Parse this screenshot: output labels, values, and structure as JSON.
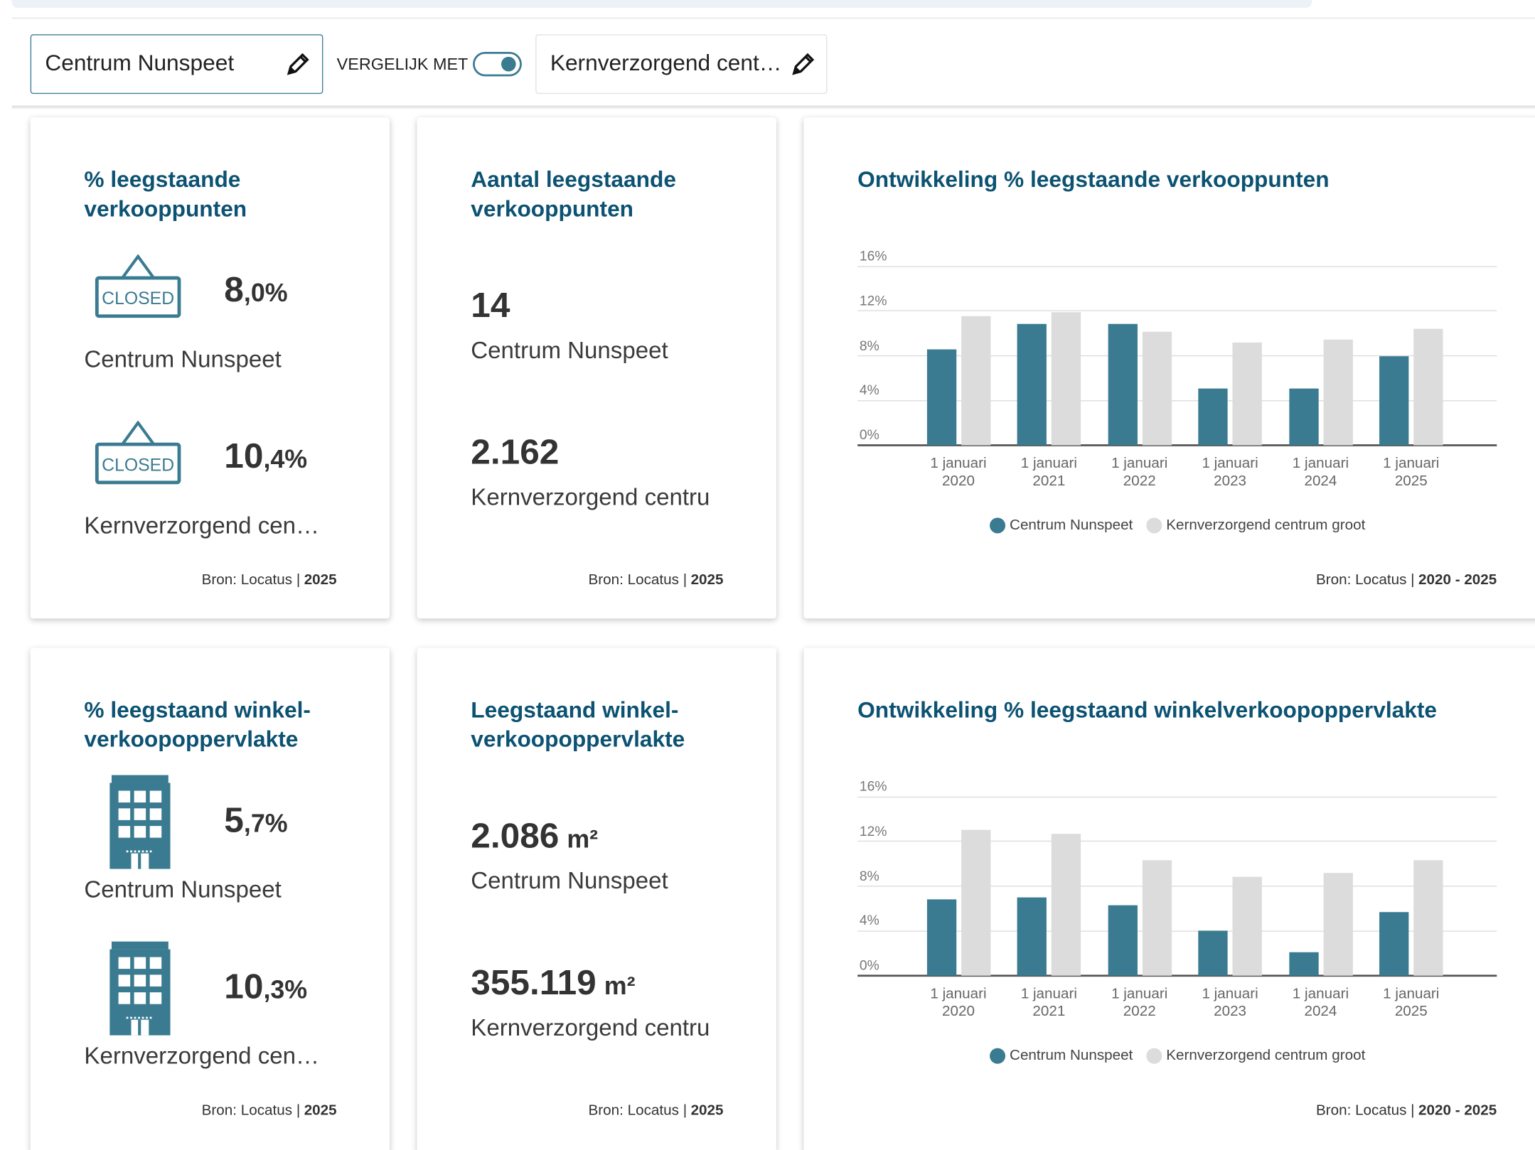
{
  "toolbar": {
    "location": "Centrum Nunspeet",
    "compare_label": "VERGELIJK MET",
    "compare_with": "Kernverzorgend cent…"
  },
  "cards": [
    {
      "title": "% leegstaande verkooppunten",
      "items": [
        {
          "sign": "CLOSED",
          "main": "8",
          "rest": ",0%",
          "label": "Centrum Nunspeet"
        },
        {
          "sign": "CLOSED",
          "main": "10",
          "rest": ",4%",
          "label": "Kernverzorgend cen…"
        }
      ],
      "source": "Bron: Locatus |",
      "year": "2025"
    },
    {
      "title": "Aantal leegstaande verkooppunten",
      "items": [
        {
          "main": "14",
          "label": "Centrum Nunspeet"
        },
        {
          "main": "2.162",
          "label": "Kernverzorgend centru"
        }
      ],
      "source": "Bron: Locatus |",
      "year": "2025"
    },
    {
      "title": "% leegstaand winkel-verkoopoppervlakte",
      "items": [
        {
          "main": "5",
          "rest": ",7%",
          "label": "Centrum Nunspeet"
        },
        {
          "main": "10",
          "rest": ",3%",
          "label": "Kernverzorgend cen…"
        }
      ],
      "source": "Bron: Locatus |",
      "year": "2025"
    },
    {
      "title": "Leegstaand winkel-verkoopoppervlakte",
      "items": [
        {
          "main": "2.086",
          "unit": "m²",
          "label": "Centrum Nunspeet"
        },
        {
          "main": "355.119",
          "unit": "m²",
          "label": "Kernverzorgend centru"
        }
      ],
      "source": "Bron: Locatus |",
      "year": "2025"
    }
  ],
  "chart_data": [
    {
      "type": "bar",
      "title": "Ontwikkeling % leegstaande verkooppunten",
      "categories": [
        "1 januari 2020",
        "1 januari 2021",
        "1 januari 2022",
        "1 januari 2023",
        "1 januari 2024",
        "1 januari 2025"
      ],
      "series": [
        {
          "name": "Centrum Nunspeet",
          "color": "#3a7b91",
          "values": [
            8.6,
            10.8,
            10.8,
            5.1,
            5.1,
            8.0
          ]
        },
        {
          "name": "Kernverzorgend centrum groot",
          "color": "#dcdcdc",
          "values": [
            11.5,
            11.9,
            10.1,
            9.2,
            9.4,
            10.4
          ]
        }
      ],
      "ylim": [
        0,
        16
      ],
      "yticks": [
        {
          "value": 0,
          "label": "0%"
        },
        {
          "value": 4,
          "label": "4%"
        },
        {
          "value": 8,
          "label": "8%"
        },
        {
          "value": 12,
          "label": "12%"
        },
        {
          "value": 16,
          "label": "16%"
        }
      ],
      "grid": true,
      "legend": "bottom",
      "source": "Bron: Locatus |",
      "period": "2020 - 2025"
    },
    {
      "type": "bar",
      "title": "Ontwikkeling % leegstaand winkelverkoopoppervlakte",
      "categories": [
        "1 januari 2020",
        "1 januari 2021",
        "1 januari 2022",
        "1 januari 2023",
        "1 januari 2024",
        "1 januari 2025"
      ],
      "series": [
        {
          "name": "Centrum Nunspeet",
          "color": "#3a7b91",
          "values": [
            6.8,
            7.0,
            6.3,
            4.0,
            2.1,
            5.7
          ]
        },
        {
          "name": "Kernverzorgend centrum groot",
          "color": "#dcdcdc",
          "values": [
            13.0,
            12.7,
            10.3,
            8.8,
            9.2,
            10.3
          ]
        }
      ],
      "ylim": [
        0,
        16
      ],
      "yticks": [
        {
          "value": 0,
          "label": "0%"
        },
        {
          "value": 4,
          "label": "4%"
        },
        {
          "value": 8,
          "label": "8%"
        },
        {
          "value": 12,
          "label": "12%"
        },
        {
          "value": 16,
          "label": "16%"
        }
      ],
      "grid": true,
      "legend": "bottom",
      "source": "Bron: Locatus |",
      "period": "2020 - 2025"
    }
  ]
}
